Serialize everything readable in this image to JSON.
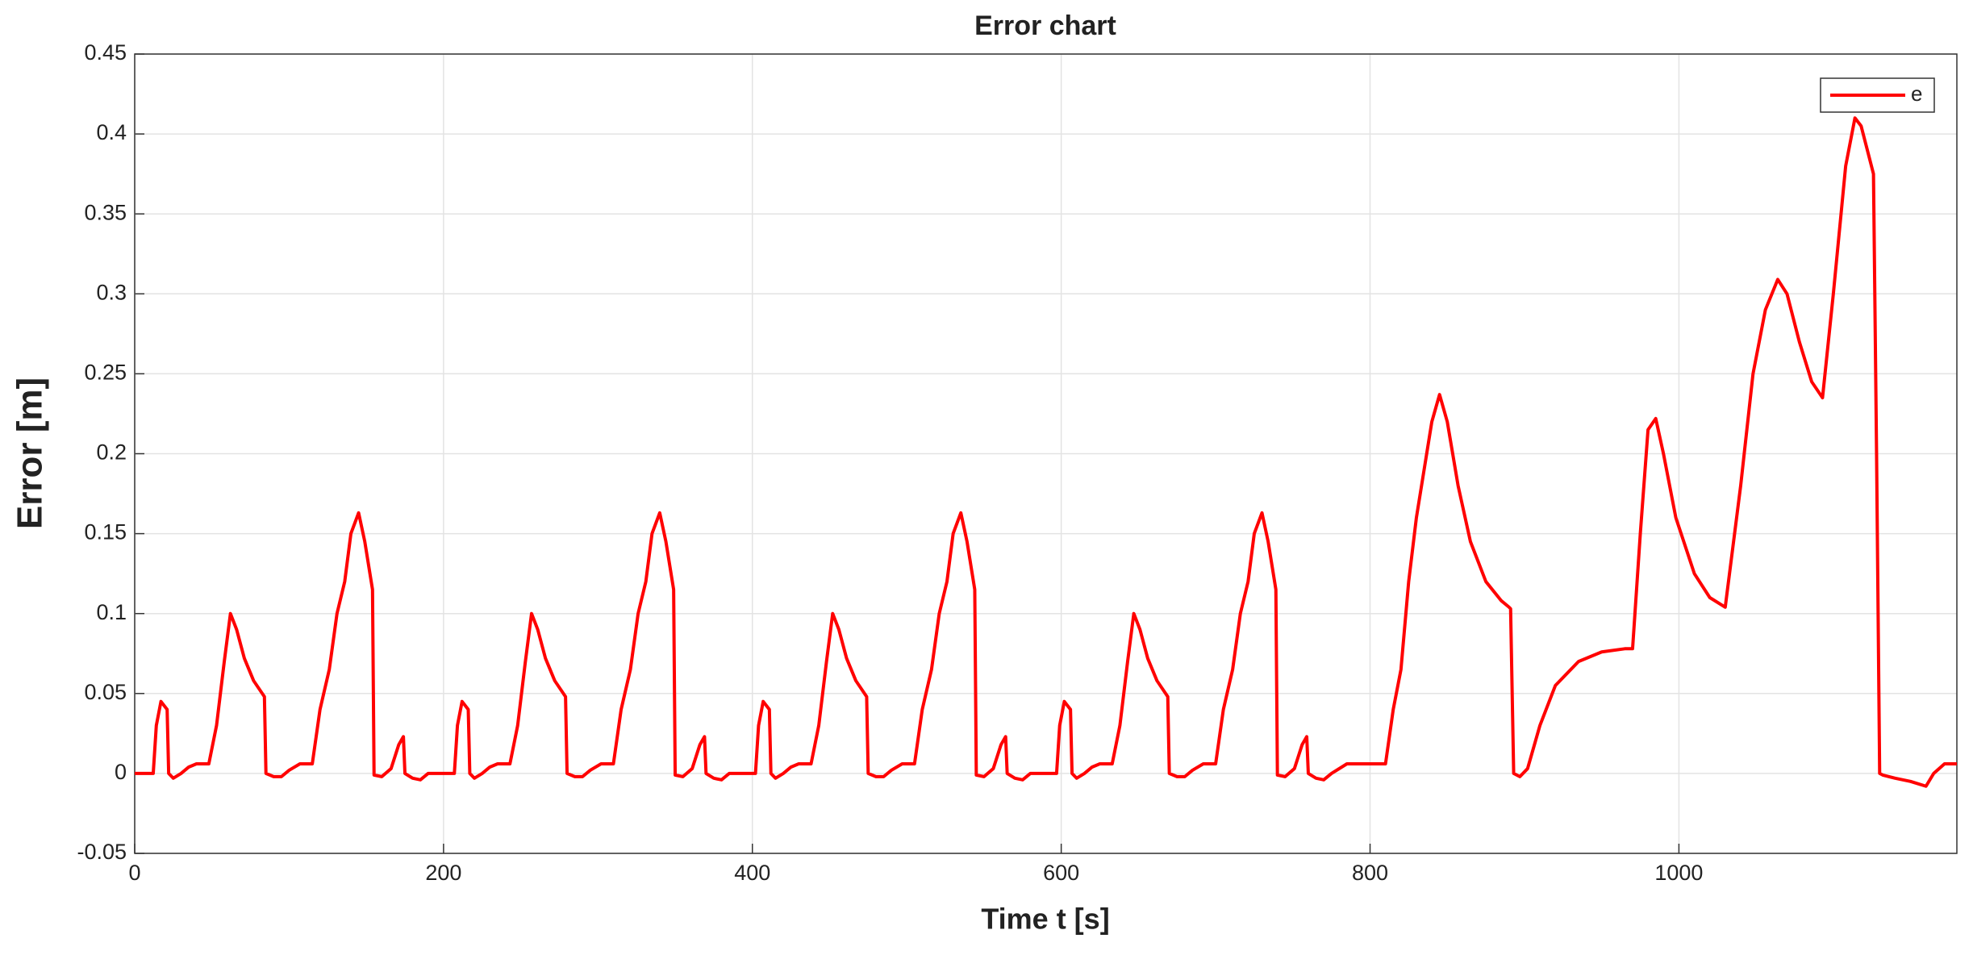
{
  "chart_data": {
    "type": "line",
    "title": "Error chart",
    "x_label": "Time t [s]",
    "y_label": "Error [m]",
    "x": [
      0,
      12,
      14,
      17,
      21,
      22,
      25,
      30,
      35,
      40,
      48,
      53,
      58,
      62,
      66,
      71,
      77,
      84,
      85,
      90,
      95,
      100,
      107,
      115,
      120,
      126,
      131,
      136,
      140,
      145,
      149,
      154,
      155,
      160,
      166,
      171,
      174,
      175,
      180,
      185,
      190,
      195,
      207,
      209,
      212,
      216,
      217,
      220,
      225,
      230,
      235,
      243,
      248,
      253,
      257,
      261,
      266,
      272,
      279,
      280,
      285,
      290,
      295,
      302,
      310,
      315,
      321,
      326,
      331,
      335,
      340,
      344,
      349,
      350,
      355,
      361,
      366,
      369,
      370,
      375,
      380,
      385,
      390,
      402,
      404,
      407,
      411,
      412,
      415,
      420,
      425,
      430,
      438,
      443,
      448,
      452,
      456,
      461,
      467,
      474,
      475,
      480,
      485,
      490,
      497,
      505,
      510,
      516,
      521,
      526,
      530,
      535,
      539,
      544,
      545,
      550,
      556,
      561,
      564,
      565,
      570,
      575,
      580,
      585,
      597,
      599,
      602,
      606,
      607,
      610,
      615,
      620,
      625,
      633,
      638,
      643,
      647,
      651,
      656,
      662,
      669,
      670,
      675,
      680,
      685,
      692,
      700,
      705,
      711,
      716,
      721,
      725,
      730,
      734,
      739,
      740,
      745,
      751,
      756,
      759,
      760,
      765,
      770,
      775,
      785,
      810,
      815,
      820,
      825,
      830,
      835,
      840,
      845,
      850,
      857,
      865,
      875,
      885,
      890,
      891,
      893,
      897,
      902,
      910,
      920,
      935,
      950,
      965,
      970,
      975,
      980,
      985,
      990,
      998,
      1010,
      1020,
      1030,
      1040,
      1048,
      1056,
      1064,
      1070,
      1078,
      1086,
      1093,
      1100,
      1108,
      1114,
      1118,
      1122,
      1126,
      1128,
      1130,
      1132,
      1140,
      1150,
      1160,
      1165,
      1172,
      1180
    ],
    "series": [
      {
        "name": "e",
        "color": "#ff0000",
        "values": [
          0,
          0,
          0.03,
          0.045,
          0.04,
          0,
          -0.003,
          0,
          0.004,
          0.006,
          0.006,
          0.03,
          0.07,
          0.1,
          0.09,
          0.072,
          0.058,
          0.048,
          0,
          -0.002,
          -0.002,
          0.002,
          0.006,
          0.006,
          0.04,
          0.065,
          0.1,
          0.12,
          0.15,
          0.163,
          0.145,
          0.115,
          -0.001,
          -0.002,
          0.003,
          0.018,
          0.023,
          0,
          -0.003,
          -0.004,
          0,
          0,
          0,
          0.03,
          0.045,
          0.04,
          0,
          -0.003,
          0,
          0.004,
          0.006,
          0.006,
          0.03,
          0.07,
          0.1,
          0.09,
          0.072,
          0.058,
          0.048,
          0,
          -0.002,
          -0.002,
          0.002,
          0.006,
          0.006,
          0.04,
          0.065,
          0.1,
          0.12,
          0.15,
          0.163,
          0.145,
          0.115,
          -0.001,
          -0.002,
          0.003,
          0.018,
          0.023,
          0,
          -0.003,
          -0.004,
          0,
          0,
          0,
          0.03,
          0.045,
          0.04,
          0,
          -0.003,
          0,
          0.004,
          0.006,
          0.006,
          0.03,
          0.07,
          0.1,
          0.09,
          0.072,
          0.058,
          0.048,
          0,
          -0.002,
          -0.002,
          0.002,
          0.006,
          0.006,
          0.04,
          0.065,
          0.1,
          0.12,
          0.15,
          0.163,
          0.145,
          0.115,
          -0.001,
          -0.002,
          0.003,
          0.018,
          0.023,
          0,
          -0.003,
          -0.004,
          0,
          0,
          0,
          0.03,
          0.045,
          0.04,
          0,
          -0.003,
          0,
          0.004,
          0.006,
          0.006,
          0.03,
          0.07,
          0.1,
          0.09,
          0.072,
          0.058,
          0.048,
          0,
          -0.002,
          -0.002,
          0.002,
          0.006,
          0.006,
          0.04,
          0.065,
          0.1,
          0.12,
          0.15,
          0.163,
          0.145,
          0.115,
          -0.001,
          -0.002,
          0.003,
          0.018,
          0.023,
          0,
          -0.003,
          -0.004,
          0,
          0.006,
          0.006,
          0.04,
          0.065,
          0.12,
          0.16,
          0.19,
          0.22,
          0.237,
          0.22,
          0.18,
          0.145,
          0.12,
          0.108,
          0.104,
          0.103,
          0,
          -0.002,
          0.003,
          0.03,
          0.055,
          0.07,
          0.076,
          0.078,
          0.078,
          0.15,
          0.215,
          0.222,
          0.2,
          0.16,
          0.125,
          0.11,
          0.104,
          0.18,
          0.25,
          0.29,
          0.309,
          0.3,
          0.27,
          0.245,
          0.235,
          0.3,
          0.38,
          0.41,
          0.405,
          0.39,
          0.375,
          0.2,
          0,
          -0.001,
          -0.003,
          -0.005,
          -0.008,
          0,
          0.006,
          0.006
        ]
      }
    ],
    "xlim": [
      0,
      1180
    ],
    "xticks": [
      0,
      200,
      400,
      600,
      800,
      1000
    ],
    "ylim": [
      -0.05,
      0.45
    ],
    "yticks": [
      -0.05,
      0,
      0.05,
      0.1,
      0.15,
      0.2,
      0.25,
      0.3,
      0.35,
      0.4,
      0.45
    ],
    "grid": true,
    "legend": "upper-right"
  }
}
